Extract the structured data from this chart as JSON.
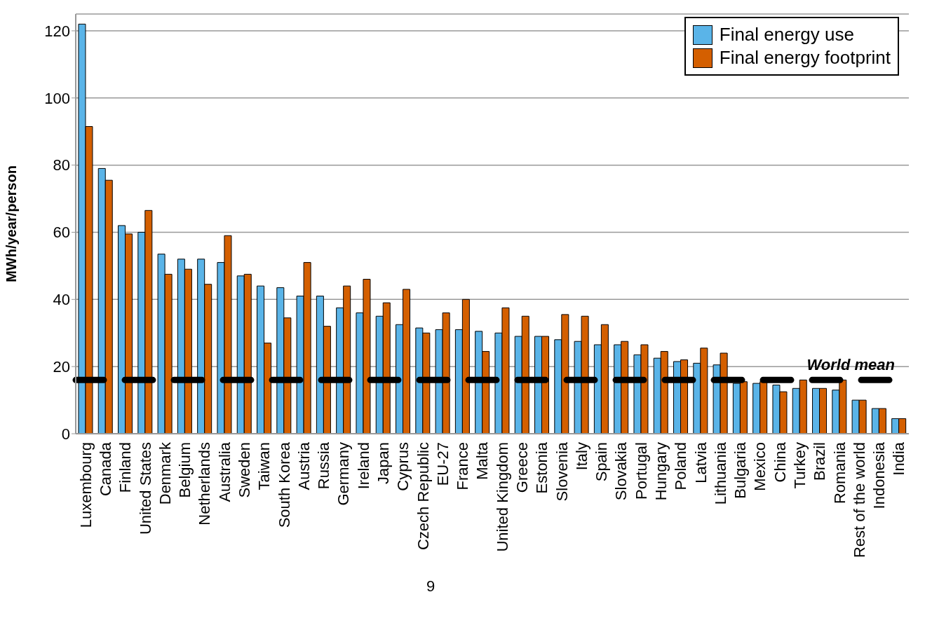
{
  "chart_data": {
    "type": "bar",
    "ylabel": "MWh/year/person",
    "categories": [
      "Luxembourg",
      "Canada",
      "Finland",
      "United States",
      "Denmark",
      "Belgium",
      "Netherlands",
      "Australia",
      "Sweden",
      "Taiwan",
      "South Korea",
      "Austria",
      "Russia",
      "Germany",
      "Ireland",
      "Japan",
      "Cyprus",
      "Czech Republic",
      "EU-27",
      "France",
      "Malta",
      "United Kingdom",
      "Greece",
      "Estonia",
      "Slovenia",
      "Italy",
      "Spain",
      "Slovakia",
      "Portugal",
      "Hungary",
      "Poland",
      "Latvia",
      "Lithuania",
      "Bulgaria",
      "Mexico",
      "China",
      "Turkey",
      "Brazil",
      "Romania",
      "Rest of the world",
      "Indonesia",
      "India"
    ],
    "series": [
      {
        "name": "Final energy use",
        "color": "#5ab4e8",
        "values": [
          122,
          79,
          62,
          60,
          53.5,
          52,
          52,
          51,
          47,
          44,
          43.5,
          41,
          41,
          37.5,
          36,
          35,
          32.5,
          31.5,
          31,
          31,
          30.5,
          30,
          29,
          29,
          28,
          27.5,
          26.5,
          26.5,
          23.5,
          22.5,
          21.5,
          21,
          20.5,
          15,
          15,
          14.5,
          13.5,
          13.5,
          13,
          10,
          7.5,
          4.5
        ]
      },
      {
        "name": "Final energy footprint",
        "color": "#d45f00",
        "values": [
          91.5,
          75.5,
          59.5,
          66.5,
          47.5,
          49,
          44.5,
          59,
          47.5,
          27,
          34.5,
          51,
          32,
          44,
          46,
          39,
          43,
          30,
          36,
          40,
          24.5,
          37.5,
          35,
          29,
          35.5,
          35,
          32.5,
          27.5,
          26.5,
          24.5,
          22,
          25.5,
          24,
          15.5,
          15.5,
          12.5,
          16,
          13.5,
          16,
          10,
          7.5,
          4.5
        ]
      }
    ],
    "ylim": [
      0,
      125
    ],
    "yticks": [
      0,
      20,
      40,
      60,
      80,
      100,
      120
    ],
    "grid": "y",
    "legend": "top right",
    "ref_lines": [
      {
        "axis": "y",
        "value": 16,
        "label": "World mean",
        "color": "#000000",
        "line_style": "dashed"
      }
    ],
    "annotations": [
      "9"
    ]
  }
}
